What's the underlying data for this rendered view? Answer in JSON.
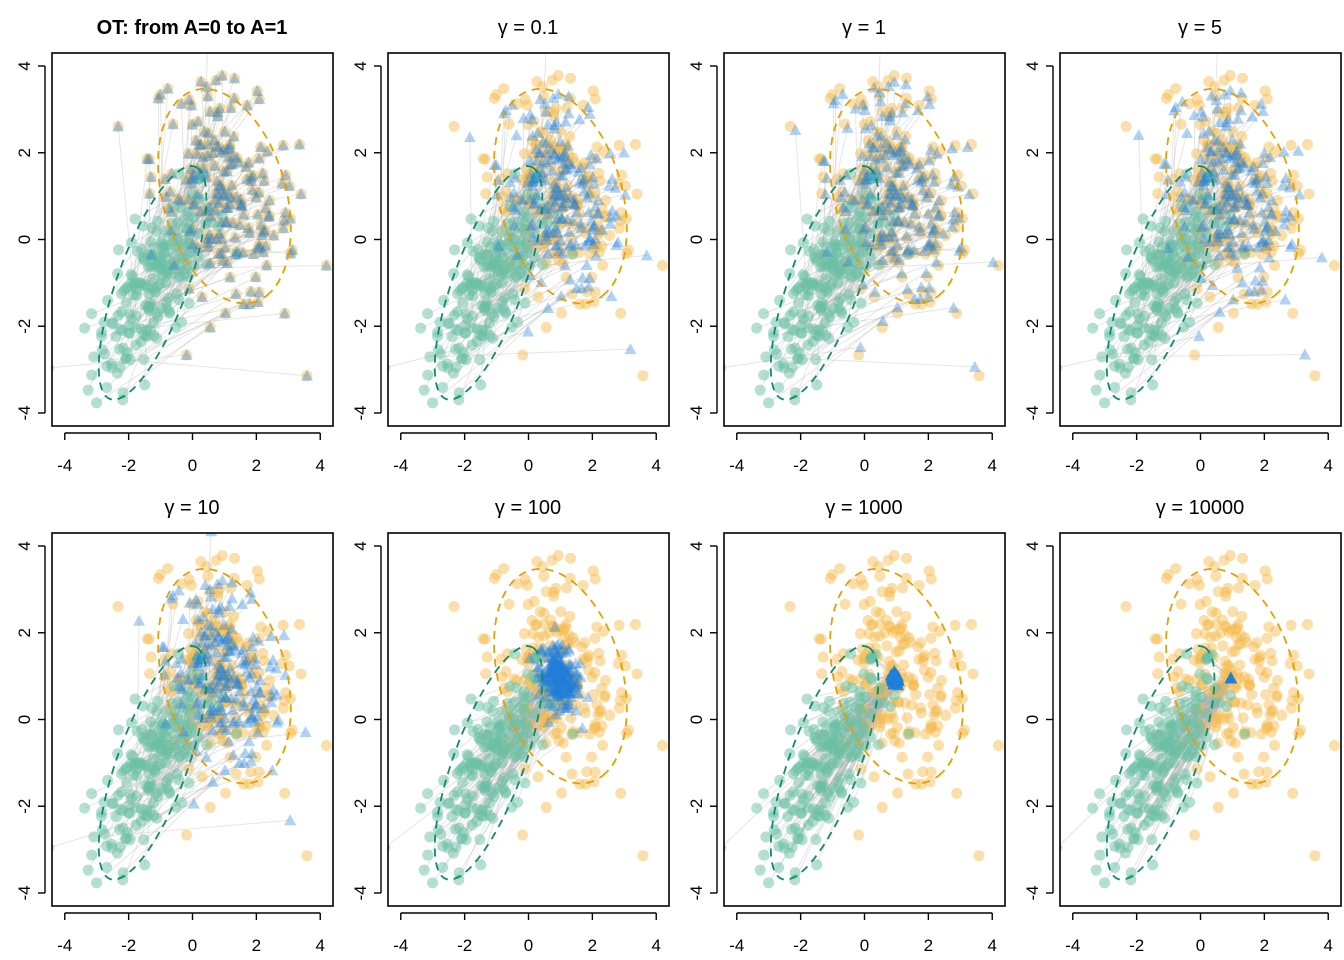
{
  "chart_data": {
    "type": "scatter",
    "layout": "2x4 grid of panels",
    "xlim": [
      -4.4,
      4.4
    ],
    "ylim": [
      -4.3,
      4.3
    ],
    "xticks": [
      -4,
      -2,
      0,
      2,
      4
    ],
    "yticks": [
      -4,
      -2,
      0,
      2,
      4
    ],
    "colors": {
      "source_points": "#69BFA3",
      "target_points": "#F5B944",
      "transported_points": "#1F7FDB",
      "arrows": "#B4B4B4",
      "source_ellipse": "#0E8A6A",
      "target_ellipse": "#E69F00"
    },
    "groups": {
      "source": {
        "label": "A=0",
        "mean": [
          -1.2,
          -1.0
        ],
        "sd": [
          0.95,
          1.15
        ],
        "corr": 0.72
      },
      "target": {
        "label": "A=1",
        "mean": [
          1.0,
          1.0
        ],
        "sd": [
          1.15,
          1.3
        ],
        "corr": -0.35
      }
    },
    "ellipses": {
      "source": {
        "center": [
          -1.25,
          -1.0
        ],
        "semi_axes": [
          3.0,
          1.05
        ],
        "angle_deg": 62
      },
      "target": {
        "center": [
          1.0,
          1.0
        ],
        "semi_axes": [
          2.65,
          1.85
        ],
        "angle_deg": -60
      }
    },
    "panels": [
      {
        "title": "OT: from A=0 to A=1",
        "gamma": null,
        "shrink": 0.0,
        "bold": true
      },
      {
        "title": "γ = 0.1",
        "gamma": 0.1,
        "shrink": 0.15,
        "bold": false
      },
      {
        "title": "γ = 1",
        "gamma": 1,
        "shrink": 0.05,
        "bold": false
      },
      {
        "title": "γ = 5",
        "gamma": 5,
        "shrink": 0.12,
        "bold": false
      },
      {
        "title": "γ = 10",
        "gamma": 10,
        "shrink": 0.2,
        "bold": false
      },
      {
        "title": "γ = 100",
        "gamma": 100,
        "shrink": 0.72,
        "bold": false
      },
      {
        "title": "γ = 1000",
        "gamma": 1000,
        "shrink": 0.96,
        "bold": false
      },
      {
        "title": "γ = 10000",
        "gamma": 10000,
        "shrink": 1.0,
        "bold": false
      }
    ],
    "n_points": 200,
    "collapse_point": [
      0.95,
      0.95
    ]
  }
}
